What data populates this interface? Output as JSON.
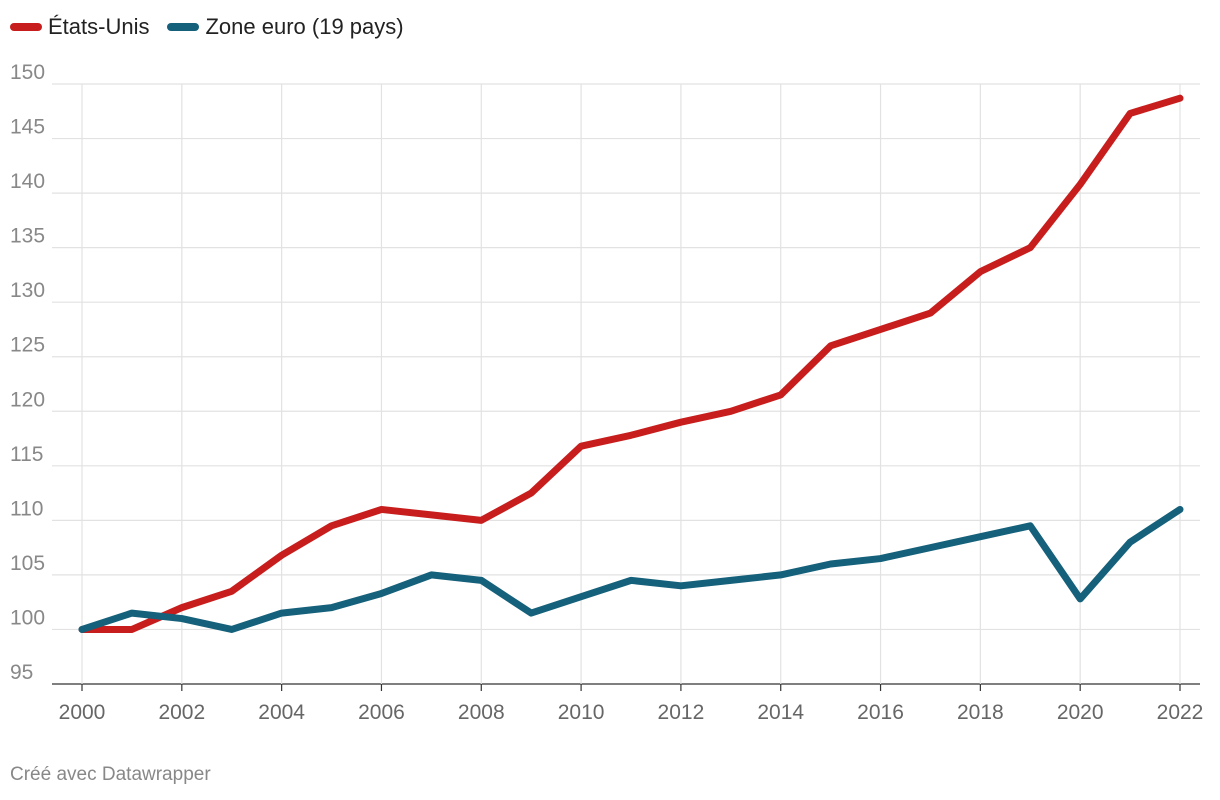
{
  "chart_data": {
    "type": "line",
    "title": "",
    "xlabel": "",
    "ylabel": "",
    "x": [
      2000,
      2001,
      2002,
      2003,
      2004,
      2005,
      2006,
      2007,
      2008,
      2009,
      2010,
      2011,
      2012,
      2013,
      2014,
      2015,
      2016,
      2017,
      2018,
      2019,
      2020,
      2021,
      2022
    ],
    "series": [
      {
        "name": "États-Unis",
        "color": "#c71e1d",
        "values": [
          100,
          100,
          102,
          103.5,
          106.8,
          109.5,
          111,
          110.5,
          110,
          112.5,
          116.8,
          117.8,
          119,
          120,
          121.5,
          126,
          127.5,
          129,
          132.8,
          135,
          140.8,
          147.3,
          148.7
        ]
      },
      {
        "name": "Zone euro (19 pays)",
        "color": "#15607a",
        "values": [
          100,
          101.5,
          101,
          100,
          101.5,
          102,
          103.3,
          105,
          104.5,
          101.5,
          103,
          104.5,
          104,
          104.5,
          105,
          106,
          106.5,
          107.5,
          108.5,
          109.5,
          102.8,
          108,
          111
        ]
      }
    ],
    "ylim": [
      95,
      150
    ],
    "yticks": [
      95,
      100,
      105,
      110,
      115,
      120,
      125,
      130,
      135,
      140,
      145,
      150
    ],
    "xticks": [
      2000,
      2002,
      2004,
      2006,
      2008,
      2010,
      2012,
      2014,
      2016,
      2018,
      2020,
      2022
    ],
    "grid": true,
    "legend": "top-left"
  },
  "footer": {
    "credit": "Créé avec Datawrapper"
  }
}
